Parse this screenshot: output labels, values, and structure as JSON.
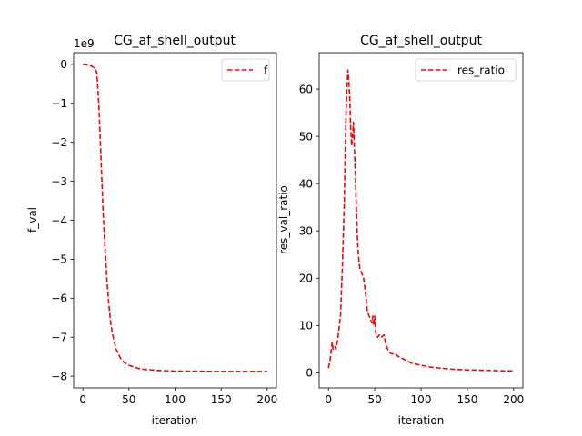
{
  "colors": {
    "series": "#ff0000"
  },
  "chart_data": [
    {
      "type": "line",
      "title": "CG_af_shell_output",
      "xlabel": "iteration",
      "ylabel": "f_val",
      "offset_text": "1e9",
      "xlim": [
        -10,
        210
      ],
      "ylim": [
        -8300000000.0,
        300000000.0
      ],
      "xticks": [
        0,
        50,
        100,
        150,
        200
      ],
      "yticks": [
        0,
        -1000000000.0,
        -2000000000.0,
        -3000000000.0,
        -4000000000.0,
        -5000000000.0,
        -6000000000.0,
        -7000000000.0,
        -8000000000.0
      ],
      "ytick_labels": [
        "0",
        "−1",
        "−2",
        "−3",
        "−4",
        "−5",
        "−6",
        "−7",
        "−8"
      ],
      "legend_position": "upper right",
      "grid": false,
      "series": [
        {
          "name": "f",
          "style": "dashed",
          "color": "#ff0000",
          "x": [
            0,
            5,
            10,
            13,
            15,
            16,
            17,
            18,
            19,
            20,
            22,
            24,
            26,
            28,
            30,
            32,
            34,
            36,
            38,
            40,
            42,
            45,
            50,
            55,
            60,
            65,
            70,
            80,
            90,
            100,
            120,
            150,
            180,
            200
          ],
          "y": [
            0,
            -20000000.0,
            -50000000.0,
            -100000000.0,
            -200000000.0,
            -500000000.0,
            -900000000.0,
            -1400000000.0,
            -2000000000.0,
            -2600000000.0,
            -3800000000.0,
            -4700000000.0,
            -5500000000.0,
            -6100000000.0,
            -6600000000.0,
            -6900000000.0,
            -7100000000.0,
            -7300000000.0,
            -7400000000.0,
            -7500000000.0,
            -7580000000.0,
            -7650000000.0,
            -7720000000.0,
            -7760000000.0,
            -7800000000.0,
            -7820000000.0,
            -7830000000.0,
            -7850000000.0,
            -7860000000.0,
            -7870000000.0,
            -7870000000.0,
            -7880000000.0,
            -7880000000.0,
            -7880000000.0
          ]
        }
      ]
    },
    {
      "type": "line",
      "title": "CG_af_shell_output",
      "xlabel": "iteration",
      "ylabel": "res_val_ratio",
      "xlim": [
        -10,
        210
      ],
      "ylim": [
        -3.2,
        67.7
      ],
      "xticks": [
        0,
        50,
        100,
        150,
        200
      ],
      "yticks": [
        0,
        10,
        20,
        30,
        40,
        50,
        60
      ],
      "legend_position": "upper right",
      "grid": false,
      "series": [
        {
          "name": "res_ratio",
          "style": "dashed",
          "color": "#ff0000",
          "x": [
            0,
            2,
            4,
            5,
            7,
            8,
            10,
            13,
            15,
            17,
            18,
            19,
            20,
            21,
            22,
            23,
            24,
            25,
            26,
            27,
            28,
            29,
            30,
            31,
            32,
            33,
            34,
            35,
            36,
            38,
            40,
            42,
            44,
            46,
            47,
            48,
            49,
            50,
            51,
            52,
            53,
            55,
            57,
            60,
            62,
            65,
            68,
            72,
            75,
            78,
            80,
            85,
            90,
            100,
            110,
            120,
            130,
            150,
            170,
            190,
            200
          ],
          "y": [
            1,
            3,
            6.5,
            5,
            5.5,
            5,
            7,
            12,
            22,
            35,
            45,
            55,
            60,
            64,
            62,
            58,
            52,
            48,
            50,
            53,
            48,
            42,
            36,
            30,
            26,
            23.5,
            22,
            21.5,
            21,
            20,
            17,
            13,
            12,
            11,
            10.5,
            12,
            10,
            12,
            8.5,
            8,
            7.5,
            8,
            7.5,
            8,
            6,
            4.5,
            4,
            4,
            3.5,
            3.2,
            3,
            2.5,
            2,
            1.6,
            1.2,
            1,
            0.8,
            0.6,
            0.5,
            0.4,
            0.4
          ]
        }
      ]
    }
  ]
}
